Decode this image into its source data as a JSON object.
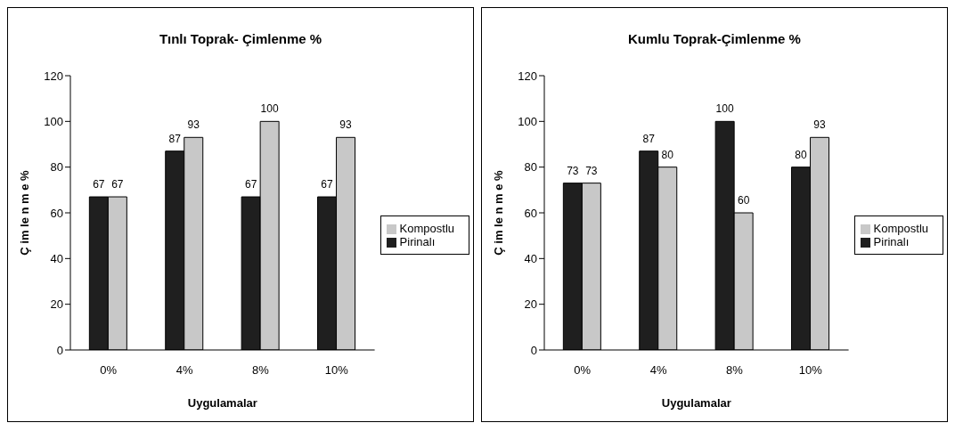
{
  "chart_data": [
    {
      "type": "bar",
      "title": "Tınlı Toprak- Çimlenme %",
      "xlabel": "Uygulamalar",
      "ylabel": "Ç im le n m e %",
      "categories": [
        "0%",
        "4%",
        "8%",
        "10%"
      ],
      "series": [
        {
          "name": "Pirinalı",
          "color": "#1f1f1f",
          "values": [
            67,
            87,
            67,
            67
          ]
        },
        {
          "name": "Kompostlu",
          "color": "#c8c8c8",
          "values": [
            67,
            93,
            100,
            93
          ]
        }
      ],
      "ylim": [
        0,
        120
      ],
      "yticks": [
        0,
        20,
        40,
        60,
        80,
        100,
        120
      ],
      "grid": false,
      "legend": "right",
      "data_labels": true
    },
    {
      "type": "bar",
      "title": "Kumlu Toprak-Çimlenme %",
      "xlabel": "Uygulamalar",
      "ylabel": "Ç im le n m e %",
      "categories": [
        "0%",
        "4%",
        "8%",
        "10%"
      ],
      "series": [
        {
          "name": "Pirinalı",
          "color": "#1f1f1f",
          "values": [
            73,
            87,
            100,
            80
          ]
        },
        {
          "name": "Kompostlu",
          "color": "#c8c8c8",
          "values": [
            73,
            80,
            60,
            93
          ]
        }
      ],
      "ylim": [
        0,
        120
      ],
      "yticks": [
        0,
        20,
        40,
        60,
        80,
        100,
        120
      ],
      "grid": false,
      "legend": "right",
      "data_labels": true
    }
  ]
}
